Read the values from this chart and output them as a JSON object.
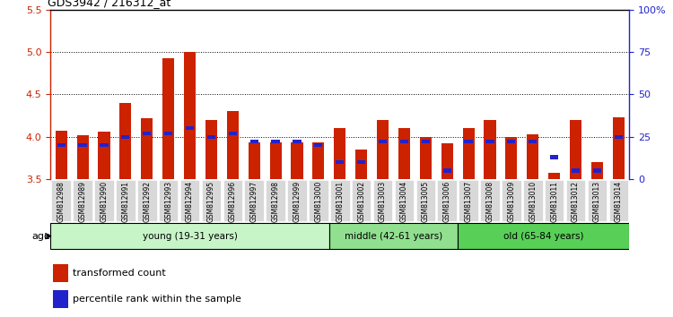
{
  "title": "GDS3942 / 216312_at",
  "samples": [
    "GSM812988",
    "GSM812989",
    "GSM812990",
    "GSM812991",
    "GSM812992",
    "GSM812993",
    "GSM812994",
    "GSM812995",
    "GSM812996",
    "GSM812997",
    "GSM812998",
    "GSM812999",
    "GSM813000",
    "GSM813001",
    "GSM813002",
    "GSM813003",
    "GSM813004",
    "GSM813005",
    "GSM813006",
    "GSM813007",
    "GSM813008",
    "GSM813009",
    "GSM813010",
    "GSM813011",
    "GSM813012",
    "GSM813013",
    "GSM813014"
  ],
  "red_values": [
    4.07,
    4.02,
    4.06,
    4.4,
    4.22,
    4.93,
    5.0,
    4.2,
    4.3,
    3.93,
    3.93,
    3.93,
    3.93,
    4.1,
    3.85,
    4.2,
    4.1,
    4.0,
    3.92,
    4.1,
    4.2,
    4.0,
    4.03,
    3.57,
    4.2,
    3.7,
    4.23
  ],
  "blue_values_pct": [
    20,
    20,
    20,
    25,
    27,
    27,
    30,
    25,
    27,
    22,
    22,
    22,
    20,
    10,
    10,
    22,
    22,
    22,
    5,
    22,
    22,
    22,
    22,
    13,
    5,
    5,
    25
  ],
  "ylim_left": [
    3.5,
    5.5
  ],
  "ylim_right": [
    0,
    100
  ],
  "yticks_left": [
    3.5,
    4.0,
    4.5,
    5.0,
    5.5
  ],
  "yticks_right": [
    0,
    25,
    50,
    75,
    100
  ],
  "ytick_labels_right": [
    "0",
    "25",
    "50",
    "75",
    "100%"
  ],
  "groups": [
    {
      "label": "young (19-31 years)",
      "start": 0,
      "end": 13,
      "color": "#c8f5c8"
    },
    {
      "label": "middle (42-61 years)",
      "start": 13,
      "end": 19,
      "color": "#90e090"
    },
    {
      "label": "old (65-84 years)",
      "start": 19,
      "end": 27,
      "color": "#58d058"
    }
  ],
  "age_label": "age",
  "legend_red": "transformed count",
  "legend_blue": "percentile rank within the sample",
  "red_color": "#cc2200",
  "blue_color": "#2222cc",
  "bar_width": 0.55,
  "base_value": 3.5,
  "bg_color": "#ffffff",
  "plot_bg": "#ffffff"
}
